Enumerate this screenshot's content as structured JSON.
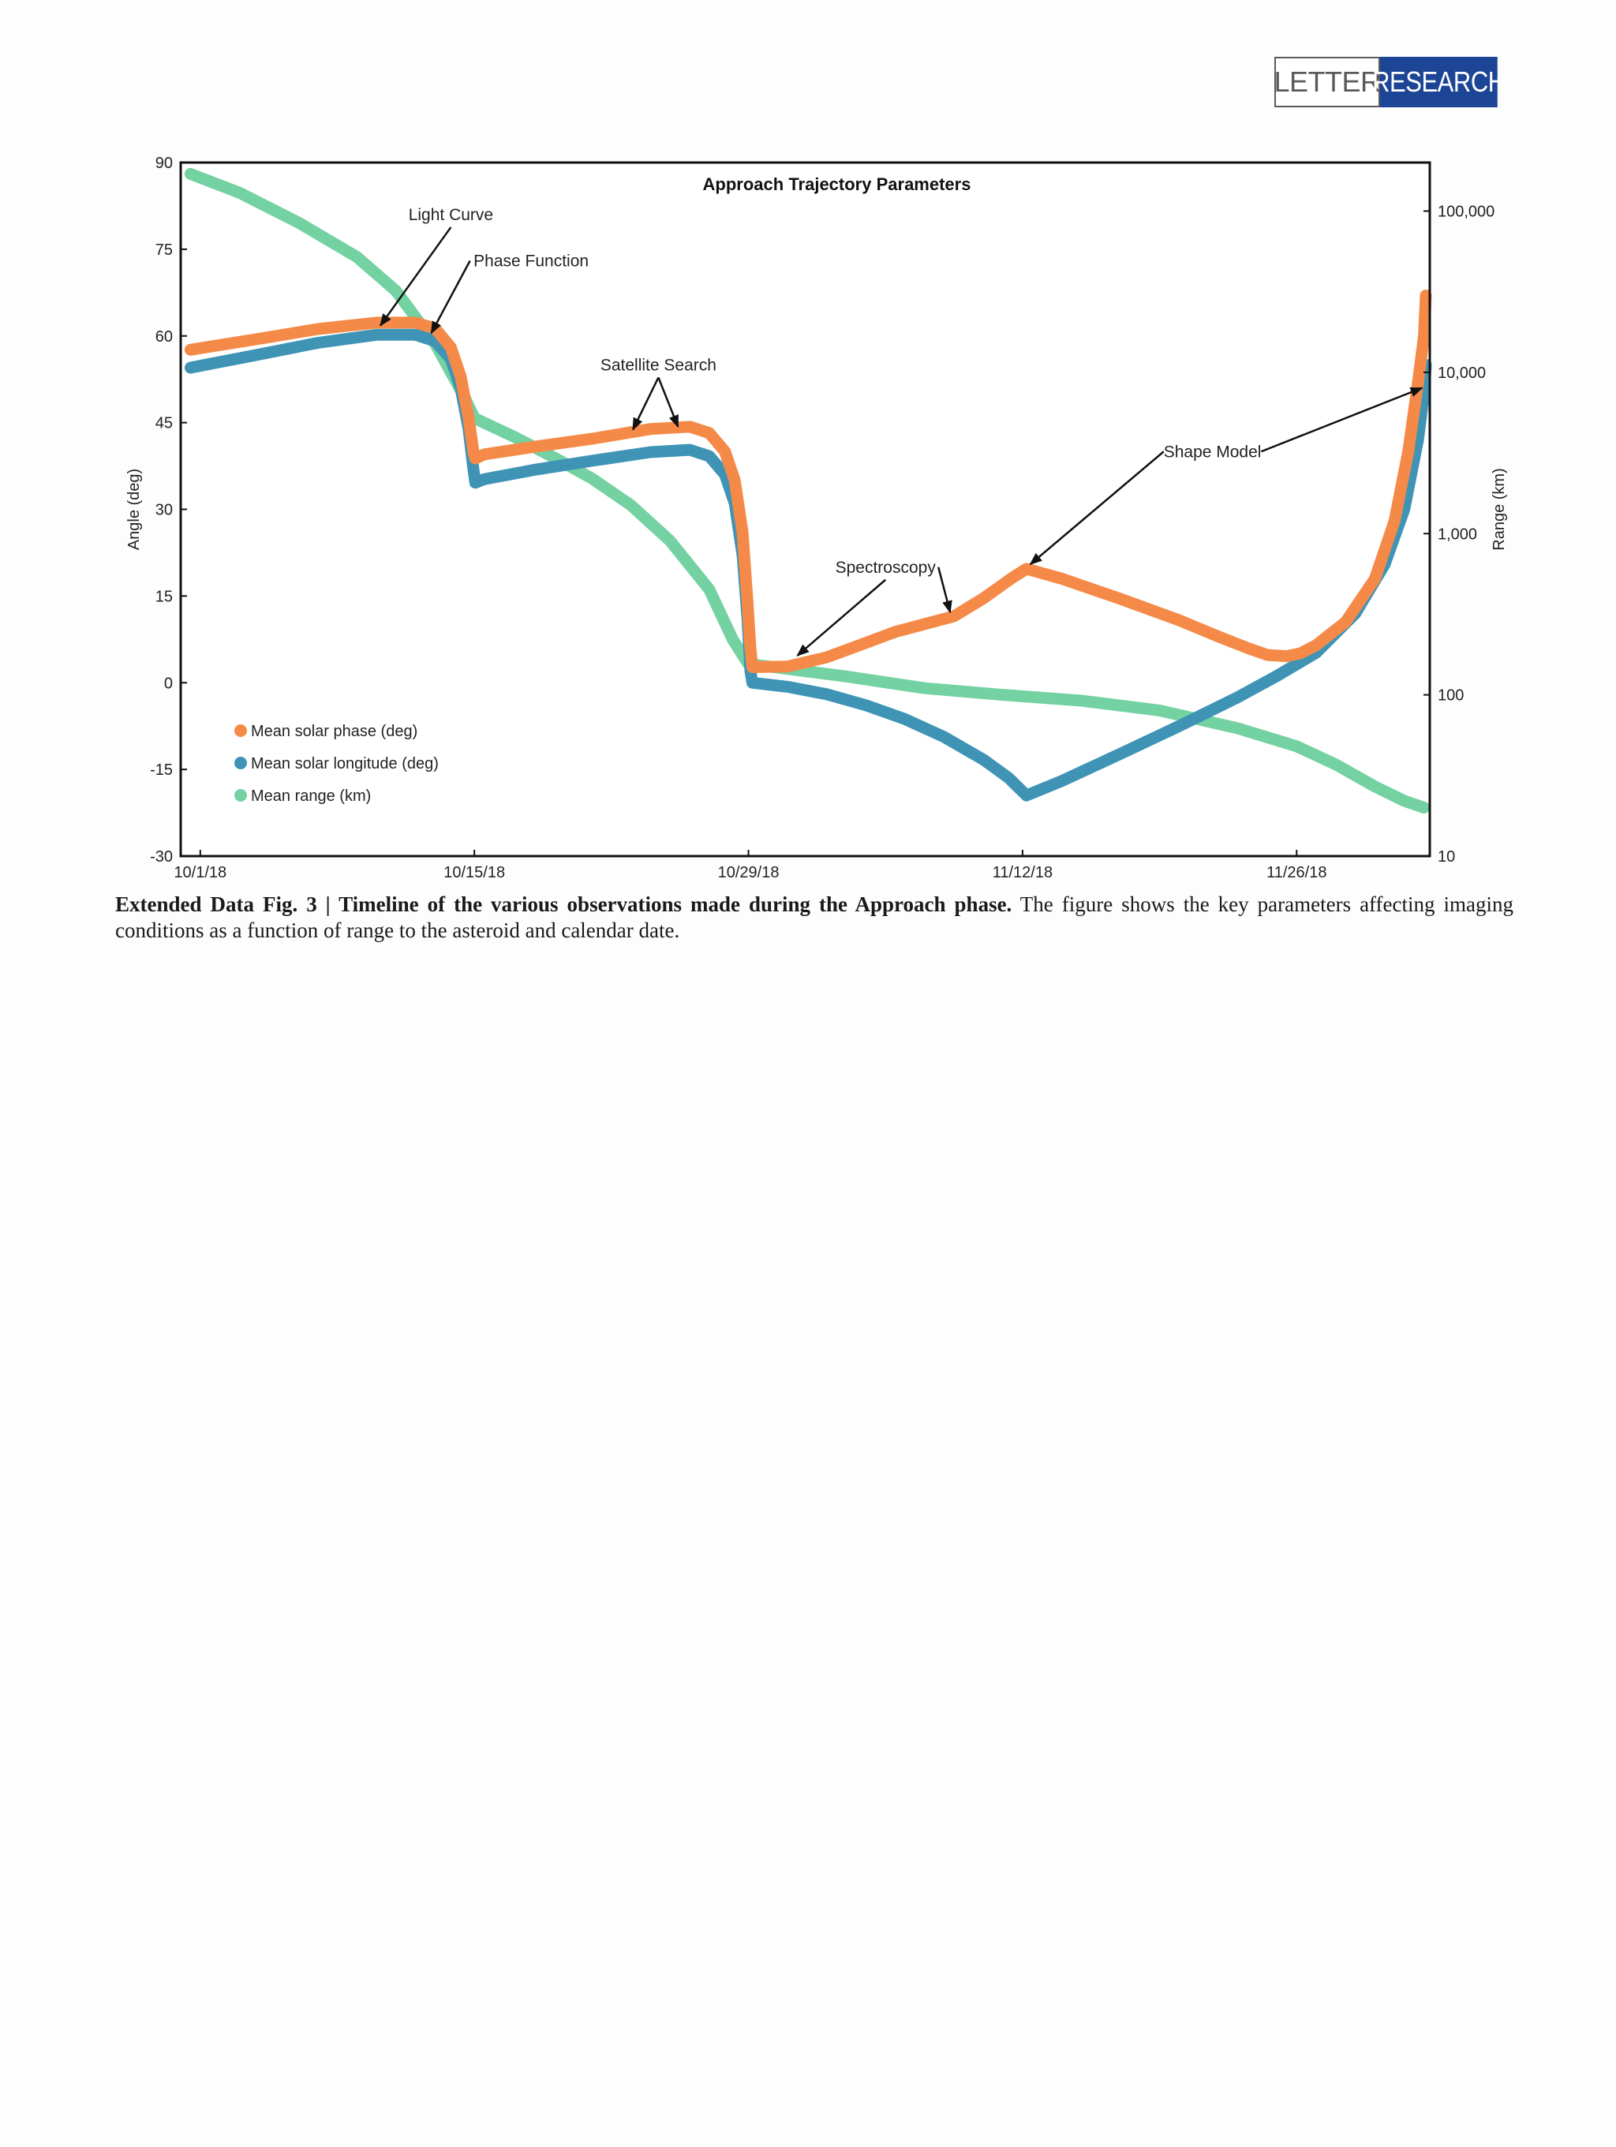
{
  "header": {
    "badge_letter": "LETTER",
    "badge_research": "RESEARCH",
    "badge_color": "#1d4596"
  },
  "caption": {
    "bold": "Extended Data Fig. 3 | Timeline of the various observations made during the Approach phase.",
    "text": " The figure shows the key parameters affecting imaging conditions as a function of range to the asteroid and calendar date."
  },
  "chart_data": {
    "type": "line",
    "title": "Approach Trajectory Parameters",
    "ylabel": "Angle (deg)",
    "y2label": "Range (km)",
    "ylim": [
      -30,
      90
    ],
    "y2lim": [
      10,
      200000
    ],
    "y2_scale": "log",
    "x_start": "10/1/18",
    "x_tick_labels": [
      "10/1/18",
      "10/15/18",
      "10/29/18",
      "11/12/18",
      "11/26/18"
    ],
    "x_ticks": [
      0,
      14,
      28,
      42,
      56
    ],
    "xlim": [
      -1,
      62.8
    ],
    "y_ticks": [
      90,
      75,
      60,
      45,
      30,
      15,
      0,
      -15,
      -30
    ],
    "y2_ticks": [
      {
        "value": 100000,
        "label": "100,000"
      },
      {
        "value": 10000,
        "label": "10,000"
      },
      {
        "value": 1000,
        "label": "1,000"
      },
      {
        "value": 100,
        "label": "100"
      },
      {
        "value": 10,
        "label": "10"
      }
    ],
    "legend_position": "lower-left",
    "grid": false,
    "series": [
      {
        "name": "Mean solar phase (deg)",
        "axis": "left",
        "color": "#f58a48",
        "points": [
          [
            -0.5,
            57.6
          ],
          [
            3,
            59.5
          ],
          [
            6,
            61.2
          ],
          [
            9,
            62.3
          ],
          [
            11,
            62.3
          ],
          [
            12,
            61.3
          ],
          [
            12.8,
            58
          ],
          [
            13.3,
            53
          ],
          [
            13.7,
            46
          ],
          [
            13.95,
            40
          ],
          [
            14.05,
            38.8
          ],
          [
            14.5,
            39.5
          ],
          [
            17,
            40.8
          ],
          [
            20,
            42.2
          ],
          [
            23,
            43.9
          ],
          [
            25,
            44.3
          ],
          [
            26,
            43.2
          ],
          [
            26.8,
            40
          ],
          [
            27.3,
            35
          ],
          [
            27.7,
            26
          ],
          [
            27.95,
            14
          ],
          [
            28.1,
            6
          ],
          [
            28.2,
            2.7
          ],
          [
            30,
            2.8
          ],
          [
            32,
            4.4
          ],
          [
            34,
            6.9
          ],
          [
            35.5,
            8.8
          ],
          [
            38.5,
            11.5
          ],
          [
            40,
            14.6
          ],
          [
            41.5,
            18.2
          ],
          [
            42.2,
            19.7
          ],
          [
            44,
            18
          ],
          [
            47,
            14.5
          ],
          [
            50,
            10.8
          ],
          [
            52,
            8
          ],
          [
            53.5,
            6
          ],
          [
            54.5,
            4.8
          ],
          [
            55.5,
            4.6
          ],
          [
            56.2,
            5.1
          ],
          [
            57,
            6.5
          ],
          [
            58.5,
            10.5
          ],
          [
            60,
            18
          ],
          [
            61,
            28
          ],
          [
            61.7,
            40
          ],
          [
            62.2,
            52
          ],
          [
            62.5,
            60
          ],
          [
            62.6,
            67
          ]
        ]
      },
      {
        "name": "Mean solar longitude (deg)",
        "axis": "left",
        "color": "#3f94b6",
        "points": [
          [
            -0.5,
            54.5
          ],
          [
            3,
            56.8
          ],
          [
            6,
            58.8
          ],
          [
            9,
            60.2
          ],
          [
            11,
            60.2
          ],
          [
            12,
            59.1
          ],
          [
            12.8,
            56
          ],
          [
            13.3,
            51
          ],
          [
            13.7,
            44
          ],
          [
            13.95,
            37
          ],
          [
            14.05,
            34.6
          ],
          [
            14.5,
            35.2
          ],
          [
            17,
            36.8
          ],
          [
            20,
            38.4
          ],
          [
            23,
            39.9
          ],
          [
            25,
            40.3
          ],
          [
            26,
            39.2
          ],
          [
            26.8,
            36
          ],
          [
            27.3,
            31
          ],
          [
            27.7,
            22
          ],
          [
            27.95,
            11
          ],
          [
            28.1,
            2
          ],
          [
            28.2,
            0
          ],
          [
            30,
            -0.7
          ],
          [
            32,
            -2
          ],
          [
            34,
            -3.9
          ],
          [
            36,
            -6.3
          ],
          [
            38,
            -9.4
          ],
          [
            40,
            -13.3
          ],
          [
            41.3,
            -16.5
          ],
          [
            42.2,
            -19.5
          ],
          [
            44,
            -17
          ],
          [
            47,
            -12.3
          ],
          [
            50,
            -7.5
          ],
          [
            53,
            -2.5
          ],
          [
            55,
            1.2
          ],
          [
            57,
            5.2
          ],
          [
            59,
            12
          ],
          [
            60.5,
            20.5
          ],
          [
            61.5,
            30
          ],
          [
            62.2,
            42
          ],
          [
            62.5,
            50
          ],
          [
            62.6,
            55
          ]
        ]
      },
      {
        "name": "Mean range (km)",
        "axis": "right",
        "color": "#74d1a2",
        "points": [
          [
            -0.5,
            170000
          ],
          [
            2,
            130000
          ],
          [
            5,
            85000
          ],
          [
            8,
            52000
          ],
          [
            10,
            32000
          ],
          [
            12,
            15000
          ],
          [
            13.5,
            7000
          ],
          [
            14,
            5200
          ],
          [
            16,
            4000
          ],
          [
            18,
            3000
          ],
          [
            20,
            2200
          ],
          [
            22,
            1500
          ],
          [
            24,
            900
          ],
          [
            26,
            450
          ],
          [
            27.2,
            220
          ],
          [
            28,
            155
          ],
          [
            29,
            150
          ],
          [
            33,
            130
          ],
          [
            37,
            110
          ],
          [
            41,
            100
          ],
          [
            45,
            92
          ],
          [
            49,
            80
          ],
          [
            53,
            62
          ],
          [
            56,
            48
          ],
          [
            58,
            37
          ],
          [
            60,
            27
          ],
          [
            61.5,
            22
          ],
          [
            62.5,
            20
          ]
        ]
      }
    ],
    "annotations": [
      {
        "text": "Light Curve",
        "x": 12.8,
        "y": 81,
        "targets": [
          [
            9.2,
            61.8
          ]
        ]
      },
      {
        "text": "Phase Function",
        "x": 16.9,
        "y": 73,
        "targets": [
          [
            11.8,
            60.5
          ]
        ]
      },
      {
        "text": "Satellite Search",
        "x": 23.4,
        "y": 55,
        "targets": [
          [
            22.1,
            43.8
          ],
          [
            24.4,
            44.3
          ]
        ]
      },
      {
        "text": "Spectroscopy",
        "x": 35,
        "y": 20,
        "targets": [
          [
            30.5,
            4.7
          ],
          [
            38.3,
            12.2
          ]
        ]
      },
      {
        "text": "Shape Model",
        "x": 51.7,
        "y": 40,
        "targets": [
          [
            42.4,
            20.5
          ],
          [
            62.4,
            51
          ]
        ]
      }
    ]
  }
}
